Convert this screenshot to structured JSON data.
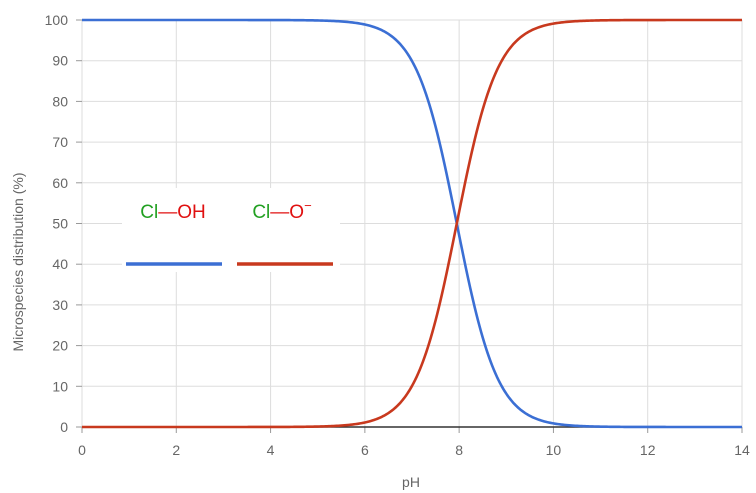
{
  "chart_data": {
    "type": "line",
    "xlabel": "pH",
    "ylabel": "Microspecies distribution (%)",
    "xlim": [
      0,
      14
    ],
    "ylim": [
      0,
      100
    ],
    "x_ticks": [
      "0",
      "2",
      "4",
      "6",
      "8",
      "10",
      "12",
      "14"
    ],
    "y_ticks": [
      "0",
      "10",
      "20",
      "30",
      "40",
      "50",
      "60",
      "70",
      "80",
      "90",
      "100"
    ],
    "grid": true,
    "legend_position": "left-middle",
    "pKa": 7.95,
    "series": [
      {
        "name": "Cl—OH",
        "color": "#3b6fd4",
        "x": [
          0,
          4,
          5,
          5.5,
          6,
          6.5,
          7,
          7.5,
          7.95,
          8.5,
          9,
          9.5,
          10,
          10.5,
          11,
          12,
          14
        ],
        "values": [
          100,
          99.99,
          99.9,
          99.7,
          98.9,
          96.6,
          90,
          73,
          50,
          22,
          8.2,
          2.7,
          0.9,
          0.3,
          0.09,
          0.01,
          0
        ]
      },
      {
        "name": "Cl—O⁻",
        "color": "#c8391e",
        "x": [
          0,
          4,
          5,
          5.5,
          6,
          6.5,
          7,
          7.5,
          7.95,
          8.5,
          9,
          9.5,
          10,
          10.5,
          11,
          12,
          14
        ],
        "values": [
          0,
          0.01,
          0.1,
          0.3,
          1.1,
          3.4,
          10,
          27,
          50,
          78,
          91.8,
          97.3,
          99.1,
          99.7,
          99.91,
          99.99,
          100
        ]
      }
    ],
    "legend": {
      "oh": {
        "atom1": "Cl",
        "bond": "—",
        "atom2": "OH",
        "atom1_color": "#22a022",
        "atom2_color": "#e01010"
      },
      "o": {
        "atom1": "Cl",
        "bond": "—",
        "atom2": "O",
        "charge": "−",
        "atom1_color": "#22a022",
        "atom2_color": "#e01010"
      }
    }
  }
}
